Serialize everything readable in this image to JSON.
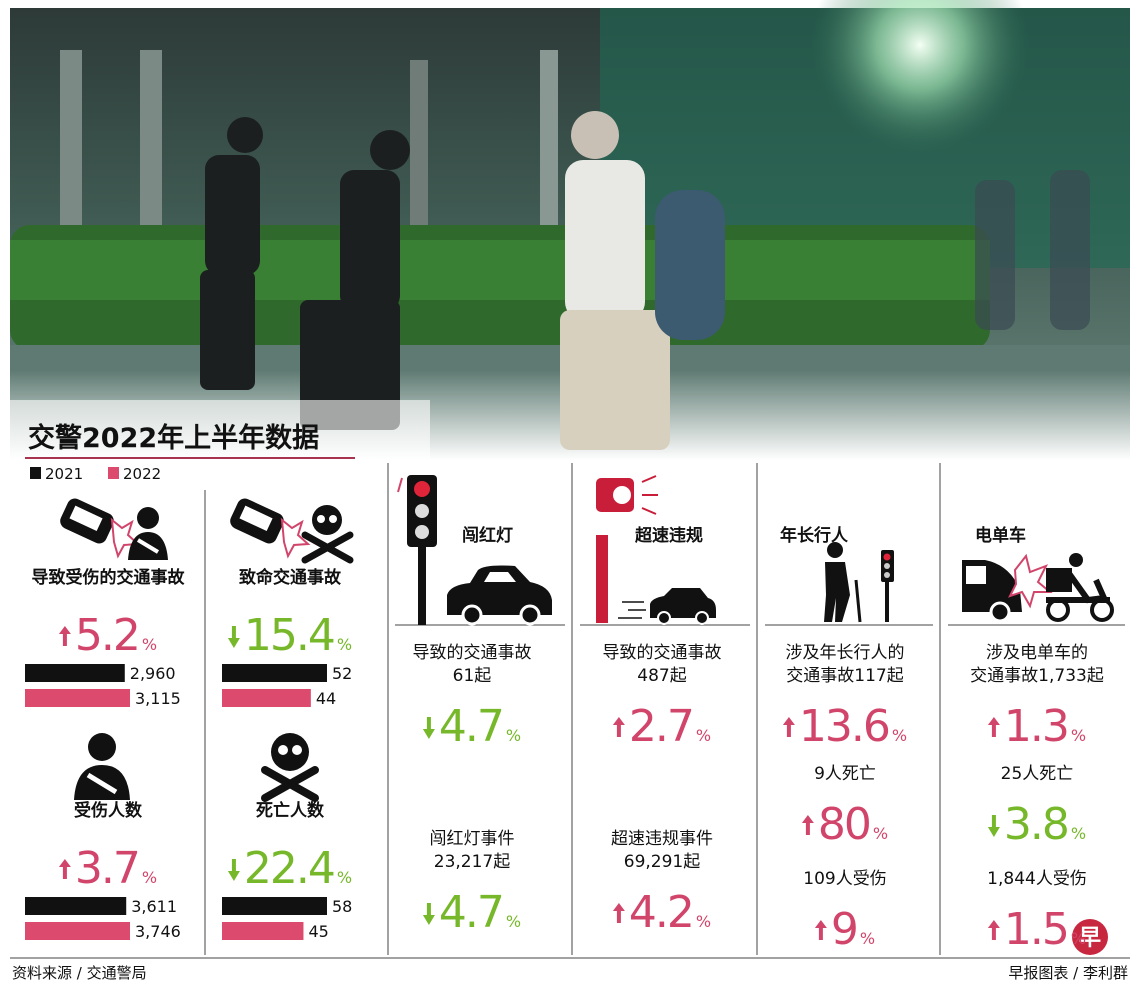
{
  "title": "交警2022年上半年数据",
  "legend": [
    {
      "name": "2021",
      "color": "#111111"
    },
    {
      "name": "2022",
      "color": "#dc4b6e"
    }
  ],
  "percent": "%",
  "colors": {
    "up": "#d2456b",
    "down": "#76b82a"
  },
  "metrics": [
    {
      "label": "导致受伤的交通事故",
      "change": {
        "direction": "up",
        "value": 5.2
      },
      "bars": {
        "values": [
          2960,
          3115
        ],
        "value_labels": [
          "2,960",
          "3,115"
        ]
      }
    },
    {
      "label": "致命交通事故",
      "change": {
        "direction": "down",
        "value": 15.4
      },
      "bars": {
        "values": [
          52,
          44
        ]
      }
    },
    {
      "label": "受伤人数",
      "change": {
        "direction": "up",
        "value": 3.7
      },
      "bars": {
        "values": [
          3611,
          3746
        ],
        "value_labels": [
          "3,611",
          "3,746"
        ]
      }
    },
    {
      "label": "死亡人数",
      "change": {
        "direction": "down",
        "value": 22.4
      },
      "bars": {
        "values": [
          58,
          45
        ]
      }
    }
  ],
  "columns": [
    {
      "heading": "闯红灯",
      "stats": [
        {
          "text": [
            "导致的交通事故",
            "61起"
          ],
          "change": {
            "direction": "down",
            "value": 4.7
          }
        },
        {
          "text": [
            "闯红灯事件",
            "23,217起"
          ],
          "change": {
            "direction": "down",
            "value": 4.7
          }
        }
      ]
    },
    {
      "heading": "超速违规",
      "stats": [
        {
          "text": [
            "导致的交通事故",
            "487起"
          ],
          "change": {
            "direction": "up",
            "value": 2.7
          }
        },
        {
          "text": [
            "超速违规事件",
            "69,291起"
          ],
          "change": {
            "direction": "up",
            "value": 4.2
          }
        }
      ]
    },
    {
      "heading": "年长行人",
      "stats": [
        {
          "text": [
            "涉及年长行人的",
            "交通事故117起"
          ],
          "change": {
            "direction": "up",
            "value": 13.6
          }
        },
        {
          "text": [
            "9人死亡"
          ],
          "change": {
            "direction": "up",
            "value": 80
          }
        },
        {
          "text": [
            "109人受伤"
          ],
          "change": {
            "direction": "up",
            "value": 9
          }
        }
      ]
    },
    {
      "heading": "电单车",
      "stats": [
        {
          "text": [
            "涉及电单车的",
            "交通事故1,733起"
          ],
          "change": {
            "direction": "up",
            "value": 1.3
          }
        },
        {
          "text": [
            "25人死亡"
          ],
          "change": {
            "direction": "down",
            "value": 3.8
          }
        },
        {
          "text": [
            "1,844人受伤"
          ],
          "change": {
            "direction": "up",
            "value": 1.5
          }
        }
      ]
    }
  ],
  "logo": "早",
  "source": "资料来源 / 交通警局",
  "credit": "早报图表 / 李利群"
}
